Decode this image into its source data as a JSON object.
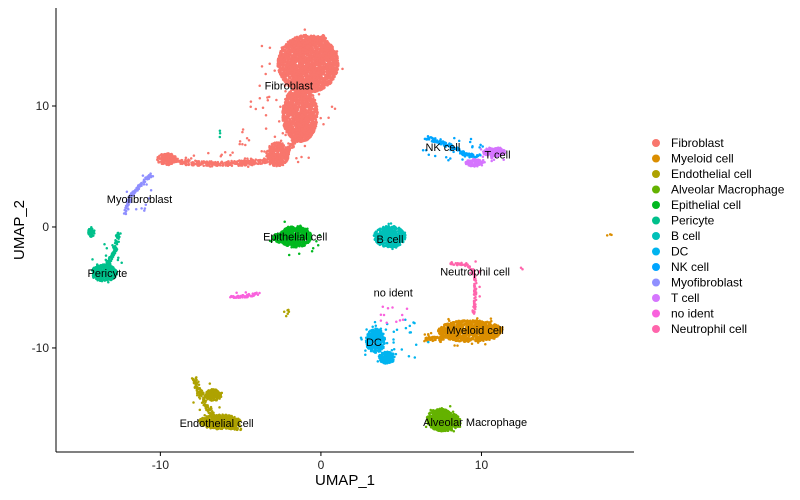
{
  "chart_data": {
    "type": "scatter",
    "title": "",
    "xlabel": "UMAP_1",
    "ylabel": "UMAP_2",
    "xlim": [
      -16.5,
      19.5
    ],
    "ylim": [
      -18.6,
      18.1
    ],
    "x_ticks": [
      -10,
      0,
      10
    ],
    "y_ticks": [
      10,
      0,
      -10
    ],
    "grid": false,
    "legend_position": "right",
    "series": [
      {
        "name": "Fibroblast",
        "color": "#F8766D",
        "label_at": [
          -2,
          11.7
        ],
        "shapes": [
          {
            "kind": "path",
            "pts": [
              [
                -9.6,
                5.6
              ],
              [
                -8.3,
                5.3
              ],
              [
                -6.5,
                5.2
              ],
              [
                -4.5,
                5.3
              ],
              [
                -2.8,
                5.6
              ],
              [
                -2.0,
                6.4
              ],
              [
                -1.5,
                7.5
              ],
              [
                -1.2,
                9.0
              ],
              [
                -1.0,
                10.5
              ],
              [
                -1.5,
                11.8
              ],
              [
                -1.8,
                13.0
              ],
              [
                -1.7,
                14.2
              ],
              [
                -0.8,
                15.1
              ],
              [
                0.3,
                15.8
              ]
            ],
            "width": 5
          },
          {
            "kind": "ellipse",
            "cx": -0.8,
            "cy": 13.5,
            "rx": 1.9,
            "ry": 2.4
          },
          {
            "kind": "ellipse",
            "cx": -1.3,
            "cy": 9.3,
            "rx": 1.1,
            "ry": 2.3
          },
          {
            "kind": "ellipse",
            "cx": -9.6,
            "cy": 5.6,
            "rx": 0.6,
            "ry": 0.5
          },
          {
            "kind": "ellipse",
            "cx": -2.7,
            "cy": 6.0,
            "rx": 0.7,
            "ry": 1.0
          },
          {
            "kind": "scatter",
            "cx": -1.5,
            "cy": 11.5,
            "rx": 3.2,
            "ry": 5.0,
            "n": 70
          },
          {
            "kind": "scatter",
            "cx": -5.0,
            "cy": 5.6,
            "rx": 4.5,
            "ry": 0.7,
            "n": 40
          },
          {
            "kind": "scatter",
            "cx": -5.0,
            "cy": 7.5,
            "rx": 0.6,
            "ry": 0.9,
            "n": 8
          }
        ]
      },
      {
        "name": "Myeloid cell",
        "color": "#DB8E00",
        "label_at": [
          9.6,
          -8.5
        ],
        "shapes": [
          {
            "kind": "ellipse",
            "cx": 9.3,
            "cy": -8.6,
            "rx": 2.0,
            "ry": 0.9
          },
          {
            "kind": "path",
            "pts": [
              [
                6.5,
                -9.3
              ],
              [
                7.5,
                -9.2
              ],
              [
                8.3,
                -8.8
              ]
            ],
            "width": 4
          },
          {
            "kind": "scatter",
            "cx": 9.0,
            "cy": -8.6,
            "rx": 2.6,
            "ry": 1.3,
            "n": 30
          },
          {
            "kind": "scatter",
            "cx": 18.0,
            "cy": -0.8,
            "rx": 0.2,
            "ry": 0.2,
            "n": 3
          }
        ]
      },
      {
        "name": "Endothelial cell",
        "color": "#AEA200",
        "label_at": [
          -6.5,
          -16.2
        ],
        "shapes": [
          {
            "kind": "path",
            "pts": [
              [
                -7.9,
                -12.6
              ],
              [
                -7.5,
                -13.8
              ],
              [
                -7.0,
                -15.0
              ],
              [
                -6.4,
                -16.0
              ],
              [
                -5.6,
                -16.5
              ],
              [
                -5.0,
                -16.6
              ]
            ],
            "width": 5
          },
          {
            "kind": "ellipse",
            "cx": -6.3,
            "cy": -16.1,
            "rx": 1.3,
            "ry": 0.6
          },
          {
            "kind": "ellipse",
            "cx": -6.7,
            "cy": -13.9,
            "rx": 0.5,
            "ry": 0.5
          },
          {
            "kind": "scatter",
            "cx": -2.1,
            "cy": -7.1,
            "rx": 0.25,
            "ry": 0.35,
            "n": 6
          },
          {
            "kind": "scatter",
            "cx": -6.8,
            "cy": -14.8,
            "rx": 1.3,
            "ry": 2.0,
            "n": 15
          }
        ]
      },
      {
        "name": "Alveolar Macrophage",
        "color": "#64B200",
        "label_at": [
          9.6,
          -16.1
        ],
        "shapes": [
          {
            "kind": "ellipse",
            "cx": 7.7,
            "cy": -16.1,
            "rx": 1.0,
            "ry": 0.8
          },
          {
            "kind": "ellipse",
            "cx": 7.4,
            "cy": -15.9,
            "rx": 0.8,
            "ry": 0.9
          },
          {
            "kind": "scatter",
            "cx": 7.6,
            "cy": -16.0,
            "rx": 1.5,
            "ry": 1.3,
            "n": 30
          }
        ]
      },
      {
        "name": "Epithelial cell",
        "color": "#00B81F",
        "label_at": [
          -1.6,
          -0.8
        ],
        "shapes": [
          {
            "kind": "ellipse",
            "cx": -1.6,
            "cy": -0.8,
            "rx": 1.0,
            "ry": 0.9
          },
          {
            "kind": "ellipse",
            "cx": -2.5,
            "cy": -0.9,
            "rx": 0.5,
            "ry": 0.4
          },
          {
            "kind": "scatter",
            "cx": -1.6,
            "cy": -1.0,
            "rx": 1.6,
            "ry": 1.6,
            "n": 25
          }
        ]
      },
      {
        "name": "Pericyte",
        "color": "#00C08B",
        "label_at": [
          -13.3,
          -3.8
        ],
        "shapes": [
          {
            "kind": "path",
            "pts": [
              [
                -12.6,
                -0.6
              ],
              [
                -12.8,
                -1.6
              ],
              [
                -13.1,
                -2.6
              ],
              [
                -13.4,
                -3.4
              ]
            ],
            "width": 4
          },
          {
            "kind": "ellipse",
            "cx": -13.5,
            "cy": -3.8,
            "rx": 0.8,
            "ry": 0.7
          },
          {
            "kind": "ellipse",
            "cx": -14.3,
            "cy": -0.4,
            "rx": 0.2,
            "ry": 0.4
          },
          {
            "kind": "scatter",
            "cx": -13.4,
            "cy": -3.0,
            "rx": 1.0,
            "ry": 1.8,
            "n": 15
          },
          {
            "kind": "scatter",
            "cx": -6.3,
            "cy": 7.7,
            "rx": 0.15,
            "ry": 0.3,
            "n": 3
          }
        ]
      },
      {
        "name": "B cell",
        "color": "#00C0B8",
        "label_at": [
          4.3,
          -1.0
        ],
        "shapes": [
          {
            "kind": "ellipse",
            "cx": 4.3,
            "cy": -0.8,
            "rx": 1.0,
            "ry": 0.9
          },
          {
            "kind": "scatter",
            "cx": 4.3,
            "cy": -0.8,
            "rx": 1.2,
            "ry": 1.1,
            "n": 15
          }
        ]
      },
      {
        "name": "DC",
        "color": "#00B4EF",
        "label_at": [
          3.3,
          -9.5
        ],
        "shapes": [
          {
            "kind": "ellipse",
            "cx": 3.4,
            "cy": -9.4,
            "rx": 0.6,
            "ry": 1.0
          },
          {
            "kind": "ellipse",
            "cx": 4.1,
            "cy": -10.8,
            "rx": 0.5,
            "ry": 0.5
          },
          {
            "kind": "scatter",
            "cx": 4.5,
            "cy": -9.5,
            "rx": 2.2,
            "ry": 2.0,
            "n": 35
          }
        ]
      },
      {
        "name": "NK cell",
        "color": "#00A5FF",
        "label_at": [
          7.6,
          6.6
        ],
        "shapes": [
          {
            "kind": "path",
            "pts": [
              [
                6.5,
                7.4
              ],
              [
                7.4,
                7.0
              ],
              [
                8.3,
                6.6
              ],
              [
                9.0,
                6.0
              ],
              [
                9.8,
                5.8
              ]
            ],
            "width": 4
          },
          {
            "kind": "scatter",
            "cx": 8.3,
            "cy": 6.5,
            "rx": 2.0,
            "ry": 1.1,
            "n": 25
          }
        ]
      },
      {
        "name": "Myofibroblast",
        "color": "#8F8FFF",
        "label_at": [
          -11.3,
          2.3
        ],
        "shapes": [
          {
            "kind": "path",
            "pts": [
              [
                -12.2,
                1.2
              ],
              [
                -11.9,
                2.4
              ],
              [
                -11.3,
                3.4
              ],
              [
                -10.5,
                4.4
              ]
            ],
            "width": 3.5
          },
          {
            "kind": "scatter",
            "cx": -11.5,
            "cy": 2.8,
            "rx": 1.0,
            "ry": 1.8,
            "n": 12
          }
        ]
      },
      {
        "name": "T cell",
        "color": "#D575FE",
        "label_at": [
          11.0,
          6.0
        ],
        "shapes": [
          {
            "kind": "ellipse",
            "cx": 10.8,
            "cy": 6.2,
            "rx": 0.7,
            "ry": 0.4
          },
          {
            "kind": "ellipse",
            "cx": 9.6,
            "cy": 5.3,
            "rx": 0.6,
            "ry": 0.3
          },
          {
            "kind": "scatter",
            "cx": 10.2,
            "cy": 5.6,
            "rx": 1.3,
            "ry": 0.9,
            "n": 12
          }
        ]
      },
      {
        "name": "no ident",
        "color": "#F962DD",
        "label_at": [
          4.5,
          -5.4
        ],
        "shapes": [
          {
            "kind": "path",
            "pts": [
              [
                -5.6,
                -5.8
              ],
              [
                -4.5,
                -5.7
              ],
              [
                -3.8,
                -5.5
              ]
            ],
            "width": 2.5
          },
          {
            "kind": "scatter",
            "cx": 4.4,
            "cy": -7.0,
            "rx": 1.0,
            "ry": 1.0,
            "n": 12
          },
          {
            "kind": "scatter",
            "cx": -4.7,
            "cy": -5.6,
            "rx": 1.0,
            "ry": 0.3,
            "n": 8
          }
        ]
      },
      {
        "name": "Neutrophil cell",
        "color": "#FF65AC",
        "label_at": [
          9.6,
          -3.7
        ],
        "shapes": [
          {
            "kind": "path",
            "pts": [
              [
                8.1,
                -3.0
              ],
              [
                9.0,
                -3.1
              ],
              [
                9.5,
                -3.6
              ],
              [
                9.6,
                -4.6
              ],
              [
                9.6,
                -6.0
              ],
              [
                9.5,
                -7.2
              ]
            ],
            "width": 2.5
          },
          {
            "kind": "scatter",
            "cx": 9.6,
            "cy": -4.8,
            "rx": 0.4,
            "ry": 2.0,
            "n": 8
          },
          {
            "kind": "scatter",
            "cx": 12.5,
            "cy": -3.4,
            "rx": 0.15,
            "ry": 0.15,
            "n": 2
          }
        ]
      }
    ]
  }
}
